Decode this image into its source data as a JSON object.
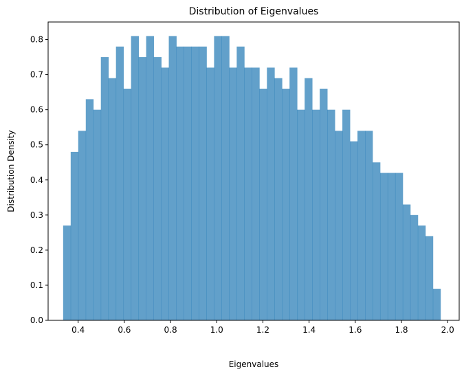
{
  "chart_data": {
    "type": "bar",
    "title": "Distribution of Eigenvalues",
    "xlabel": "Eigenvalues",
    "ylabel": "Distribution Density",
    "xlim": [
      0.27,
      2.05
    ],
    "ylim": [
      0,
      0.85
    ],
    "xticks": [
      0.4,
      0.6,
      0.8,
      1.0,
      1.2,
      1.4,
      1.6,
      1.8,
      2.0
    ],
    "xtick_labels": [
      "0.4",
      "0.6",
      "0.8",
      "1.0",
      "1.2",
      "1.4",
      "1.6",
      "1.8",
      "2.0"
    ],
    "yticks": [
      0.0,
      0.1,
      0.2,
      0.3,
      0.4,
      0.5,
      0.6,
      0.7,
      0.8
    ],
    "ytick_labels": [
      "0.0",
      "0.1",
      "0.2",
      "0.3",
      "0.4",
      "0.5",
      "0.6",
      "0.7",
      "0.8"
    ],
    "grid": false,
    "bar_color": "#1f77b4",
    "bar_opacity": 0.7,
    "bin_start": 0.335,
    "bin_end": 1.969,
    "values": [
      0.27,
      0.48,
      0.54,
      0.63,
      0.6,
      0.75,
      0.69,
      0.78,
      0.66,
      0.81,
      0.75,
      0.81,
      0.75,
      0.72,
      0.81,
      0.78,
      0.78,
      0.78,
      0.78,
      0.72,
      0.81,
      0.81,
      0.72,
      0.78,
      0.72,
      0.72,
      0.66,
      0.72,
      0.69,
      0.66,
      0.72,
      0.6,
      0.69,
      0.6,
      0.66,
      0.6,
      0.54,
      0.6,
      0.51,
      0.54,
      0.54,
      0.45,
      0.42,
      0.42,
      0.42,
      0.33,
      0.3,
      0.27,
      0.24,
      0.09
    ]
  }
}
